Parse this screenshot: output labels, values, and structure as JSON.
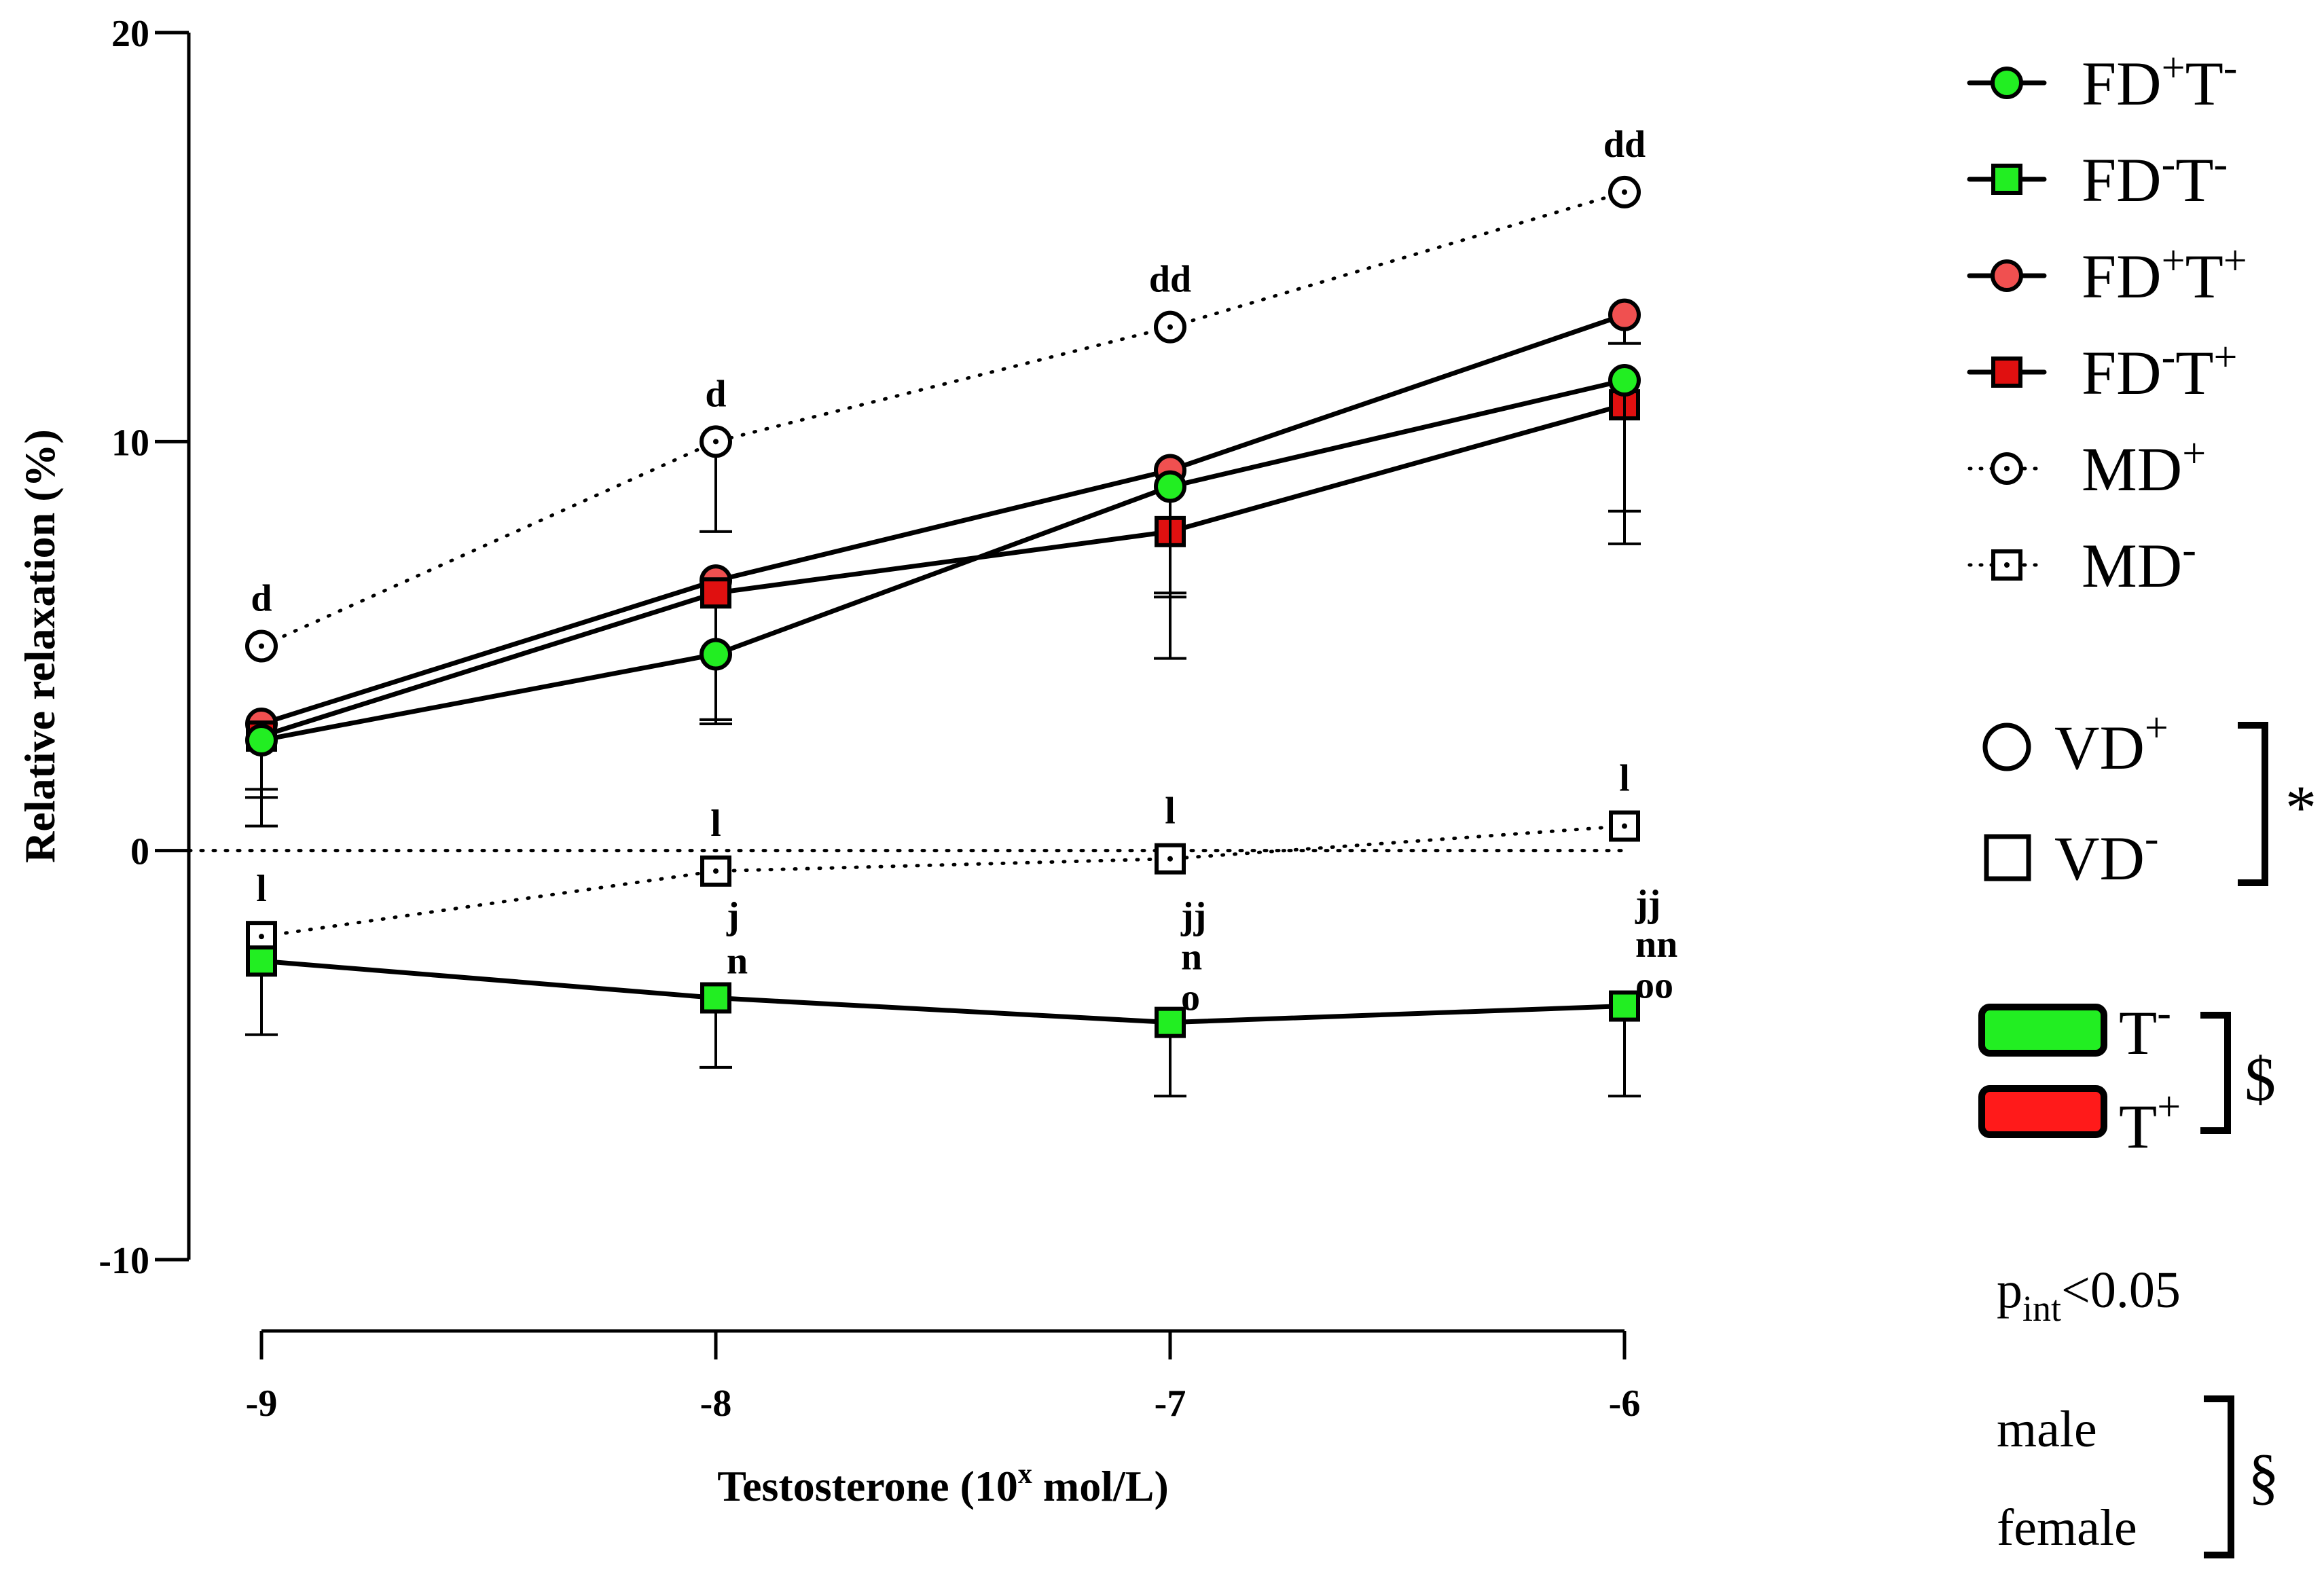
{
  "chart_data": {
    "type": "line",
    "xlabel_main": "Testosterone (10",
    "xlabel_sup": "x",
    "xlabel_tail": " mol/L)",
    "ylabel": "Relative relaxation (%)",
    "x": [
      -9,
      -8,
      -7,
      -6
    ],
    "x_tick_labels": [
      "-9",
      "-8",
      "-7",
      "-6"
    ],
    "ylim": [
      -10,
      20
    ],
    "y_ticks": [
      20,
      10,
      0,
      -10
    ],
    "y_tick_labels": [
      "20",
      "10",
      "0",
      "-10"
    ],
    "zero_line": true,
    "series": [
      {
        "name": "MD+",
        "values": [
          5.0,
          10.0,
          12.8,
          16.1
        ],
        "err": [
          0,
          2.2,
          0,
          0
        ],
        "marker": "circle",
        "fill": "#ffffff",
        "line": "dotted",
        "center_dot": true
      },
      {
        "name": "MD-",
        "values": [
          -2.1,
          -0.5,
          -0.2,
          0.6
        ],
        "err": [
          0,
          0,
          0,
          0
        ],
        "marker": "square",
        "fill": "#ffffff",
        "line": "dotted",
        "center_dot": true
      },
      {
        "name": "FD+T+",
        "values": [
          3.1,
          6.6,
          9.3,
          13.1
        ],
        "err": [
          2.5,
          3.4,
          4.6,
          0.7
        ],
        "marker": "circle",
        "fill": "#f05050",
        "line": "solid"
      },
      {
        "name": "FD-T+",
        "values": [
          2.8,
          6.3,
          7.8,
          10.9
        ],
        "err": [
          1.5,
          3.2,
          1.5,
          2.6
        ],
        "marker": "square",
        "fill": "#e01010",
        "line": "solid"
      },
      {
        "name": "FD+T-",
        "values": [
          2.7,
          4.8,
          8.9,
          11.5
        ],
        "err": [
          1.2,
          1.6,
          2.7,
          4.0
        ],
        "marker": "circle",
        "fill": "#22ee22",
        "line": "solid"
      },
      {
        "name": "FD-T-",
        "values": [
          -2.7,
          -3.6,
          -4.2,
          -3.8
        ],
        "err": [
          1.8,
          1.7,
          1.8,
          2.2
        ],
        "marker": "square",
        "fill": "#22ee22",
        "line": "solid"
      }
    ],
    "annotations": [
      {
        "x": -9,
        "y": 5.0,
        "text": "d"
      },
      {
        "x": -8,
        "y": 10.0,
        "text": "d"
      },
      {
        "x": -7,
        "y": 12.8,
        "text": "dd"
      },
      {
        "x": -6,
        "y": 16.1,
        "text": "dd"
      },
      {
        "x": -9,
        "y": -2.1,
        "text": "l"
      },
      {
        "x": -8,
        "y": -0.5,
        "text": "l"
      },
      {
        "x": -7,
        "y": -0.2,
        "text": "l"
      },
      {
        "x": -6,
        "y": 0.6,
        "text": "l"
      },
      {
        "x": -8,
        "y": -1.6,
        "text": "j"
      },
      {
        "x": -8,
        "y": -2.7,
        "text": "n"
      },
      {
        "x": -7,
        "y": -1.6,
        "text": "jj"
      },
      {
        "x": -7,
        "y": -2.6,
        "text": "n"
      },
      {
        "x": -7,
        "y": -3.6,
        "text": "o"
      },
      {
        "x": -6,
        "y": -1.3,
        "text": "jj"
      },
      {
        "x": -6,
        "y": -2.3,
        "text": "nn"
      },
      {
        "x": -6,
        "y": -3.3,
        "text": "oo"
      }
    ],
    "legend": [
      {
        "base": "FD",
        "sup1": "+",
        "mid": "T",
        "sup2": "-",
        "marker": "circle",
        "fill": "#22ee22",
        "line": "solid"
      },
      {
        "base": "FD",
        "sup1": "-",
        "mid": "T",
        "sup2": "-",
        "marker": "square",
        "fill": "#22ee22",
        "line": "solid"
      },
      {
        "base": "FD",
        "sup1": "+",
        "mid": "T",
        "sup2": "+",
        "marker": "circle",
        "fill": "#f05050",
        "line": "solid"
      },
      {
        "base": "FD",
        "sup1": "-",
        "mid": "T",
        "sup2": "+",
        "marker": "square",
        "fill": "#e01010",
        "line": "solid"
      },
      {
        "base": "MD",
        "sup1": "+",
        "mid": "",
        "sup2": "",
        "marker": "circle",
        "fill": "#ffffff",
        "line": "dotted"
      },
      {
        "base": "MD",
        "sup1": "-",
        "mid": "",
        "sup2": "",
        "marker": "square",
        "fill": "#ffffff",
        "line": "dotted"
      }
    ],
    "groups": {
      "vd_plus": {
        "base": "VD",
        "sup": "+"
      },
      "vd_minus": {
        "base": "VD",
        "sup": "-"
      },
      "vd_symbol": "*",
      "t_minus": {
        "base": "T",
        "sup": "-",
        "color": "#22ee22"
      },
      "t_plus": {
        "base": "T",
        "sup": "+",
        "color": "#ff1a1a"
      },
      "t_symbol": "$",
      "pint_base": "p",
      "pint_sub": "int",
      "pint_tail": "<0.05",
      "sex_male": "male",
      "sex_female": "female",
      "sex_symbol": "§"
    }
  }
}
